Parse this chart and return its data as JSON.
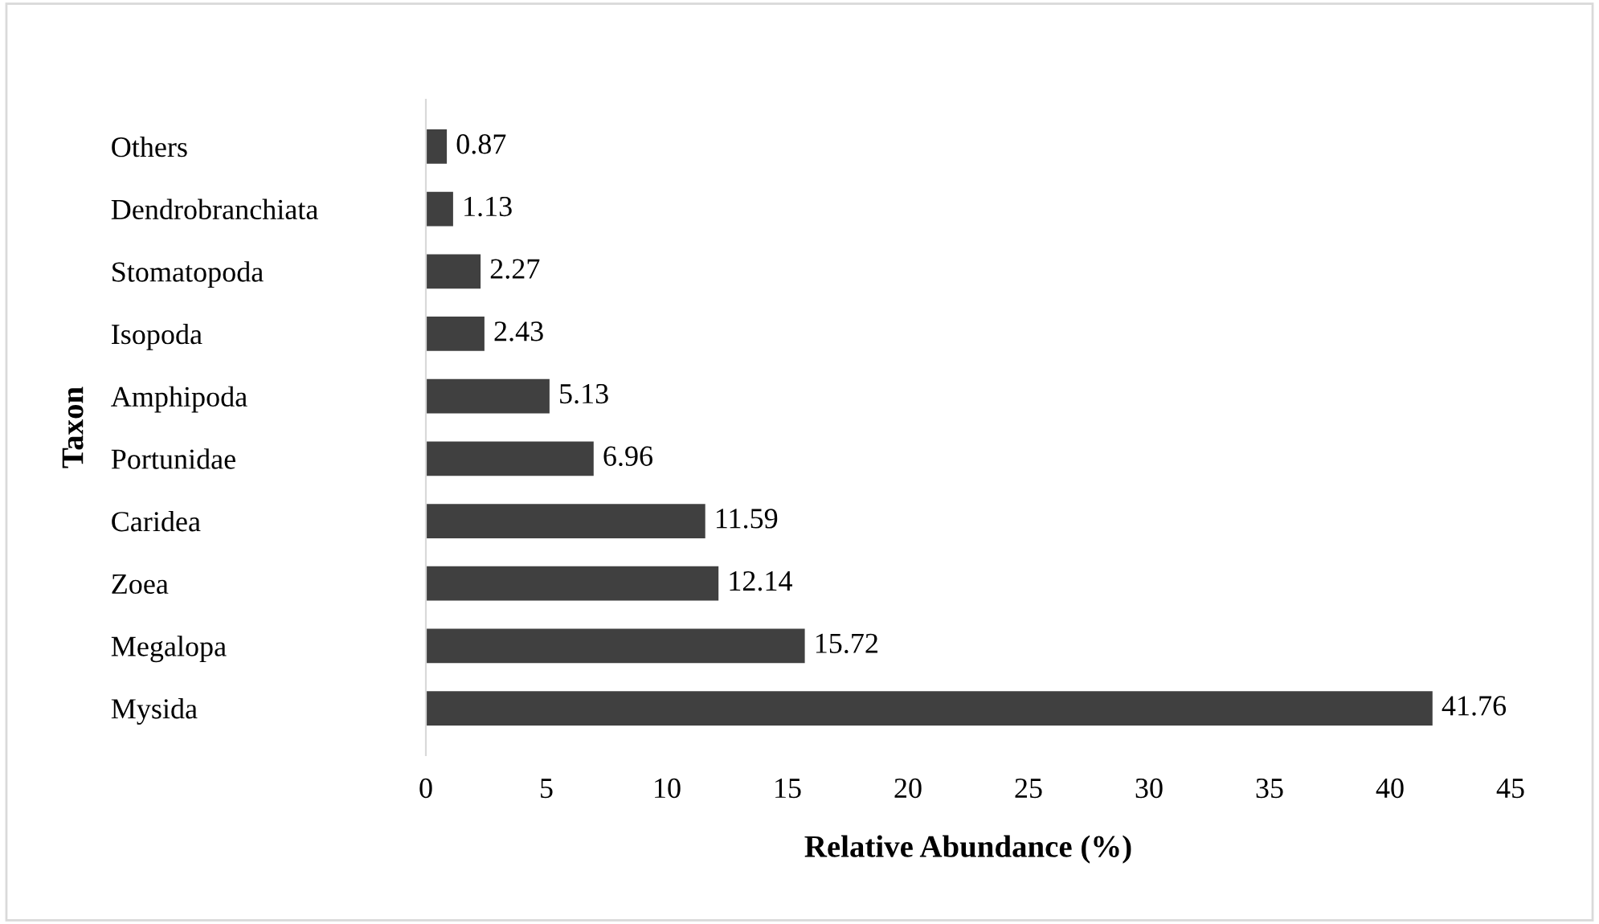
{
  "chart_data": {
    "type": "bar",
    "orientation": "horizontal",
    "xlabel": "Relative Abundance (%)",
    "ylabel": "Taxon",
    "categories": [
      "Others",
      "Dendrobranchiata",
      "Stomatopoda",
      "Isopoda",
      "Amphipoda",
      "Portunidae",
      "Caridea",
      "Zoea",
      "Megalopa",
      "Mysida"
    ],
    "values": [
      0.87,
      1.13,
      2.27,
      2.43,
      5.13,
      6.96,
      11.59,
      12.14,
      15.72,
      41.76
    ],
    "color": "#404040",
    "xlim": [
      0,
      45
    ],
    "xticks": [
      0,
      5,
      10,
      15,
      20,
      25,
      30,
      35,
      40,
      45
    ],
    "data_labels": true,
    "grid": false,
    "legend": false
  }
}
